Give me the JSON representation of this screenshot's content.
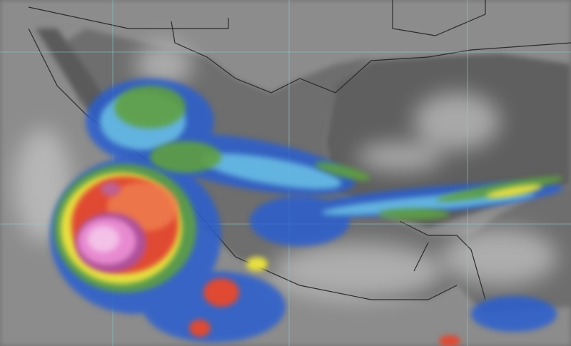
{
  "image": {
    "kind": "enhanced infrared satellite view",
    "colors": {
      "background_gray": "#7a7a7a",
      "land_gray": "#9a9a9a",
      "cloud_light": "#d8d8d8",
      "borders": "#2b2b2b",
      "gridlines": "#8fd0d0",
      "enhancement_blue": "#2a5fd0",
      "enhancement_cyan": "#6fc8e8",
      "enhancement_green": "#5fa040",
      "enhancement_yellow": "#e8e040",
      "enhancement_red": "#e04a30",
      "enhancement_pink": "#e88ad0"
    }
  }
}
